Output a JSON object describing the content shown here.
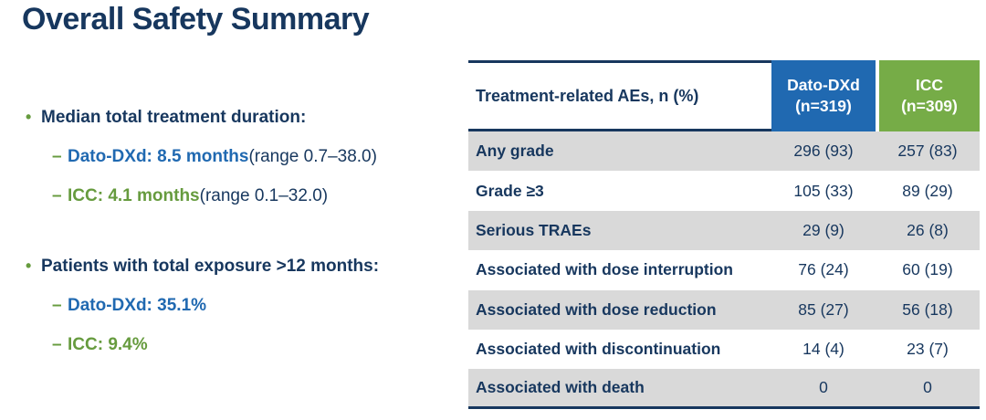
{
  "title": "Overall Safety Summary",
  "colors": {
    "navy": "#17375E",
    "blue": "#2069B1",
    "green_text": "#669B3E",
    "blue_header_bg": "#2069B1",
    "green_header_bg": "#76AC47",
    "stripe_gray": "#D9D9D9"
  },
  "glyphs": {
    "bullet": "•",
    "dash": "–"
  },
  "bullets": [
    {
      "label": "Median total treatment duration:",
      "items": [
        {
          "highlight": "Dato-DXd: 8.5 months",
          "color": "blue",
          "suffix": " (range 0.7–38.0)"
        },
        {
          "highlight": "ICC: 4.1 months",
          "color": "green",
          "suffix": " (range 0.1–32.0)"
        }
      ]
    },
    {
      "label": "Patients with total exposure >12 months:",
      "items": [
        {
          "highlight": "Dato-DXd: 35.1%",
          "color": "blue",
          "suffix": ""
        },
        {
          "highlight": "ICC: 9.4%",
          "color": "green",
          "suffix": ""
        }
      ]
    }
  ],
  "table": {
    "header_label": "Treatment-related AEs, n (%)",
    "columns": [
      {
        "name": "Dato-DXd",
        "n": "(n=319)"
      },
      {
        "name": "ICC",
        "n": "(n=309)"
      }
    ],
    "rows": [
      {
        "label": "Any grade",
        "values": [
          "296 (93)",
          "257 (83)"
        ]
      },
      {
        "label": "Grade ≥3",
        "values": [
          "105 (33)",
          "89 (29)"
        ]
      },
      {
        "label": "Serious TRAEs",
        "values": [
          "29 (9)",
          "26 (8)"
        ]
      },
      {
        "label": "Associated with dose interruption",
        "values": [
          "76 (24)",
          "60 (19)"
        ]
      },
      {
        "label": "Associated with dose reduction",
        "values": [
          "85 (27)",
          "56 (18)"
        ]
      },
      {
        "label": "Associated with discontinuation",
        "values": [
          "14 (4)",
          "23 (7)"
        ]
      },
      {
        "label": "Associated with death",
        "values": [
          "0",
          "0"
        ]
      }
    ]
  }
}
